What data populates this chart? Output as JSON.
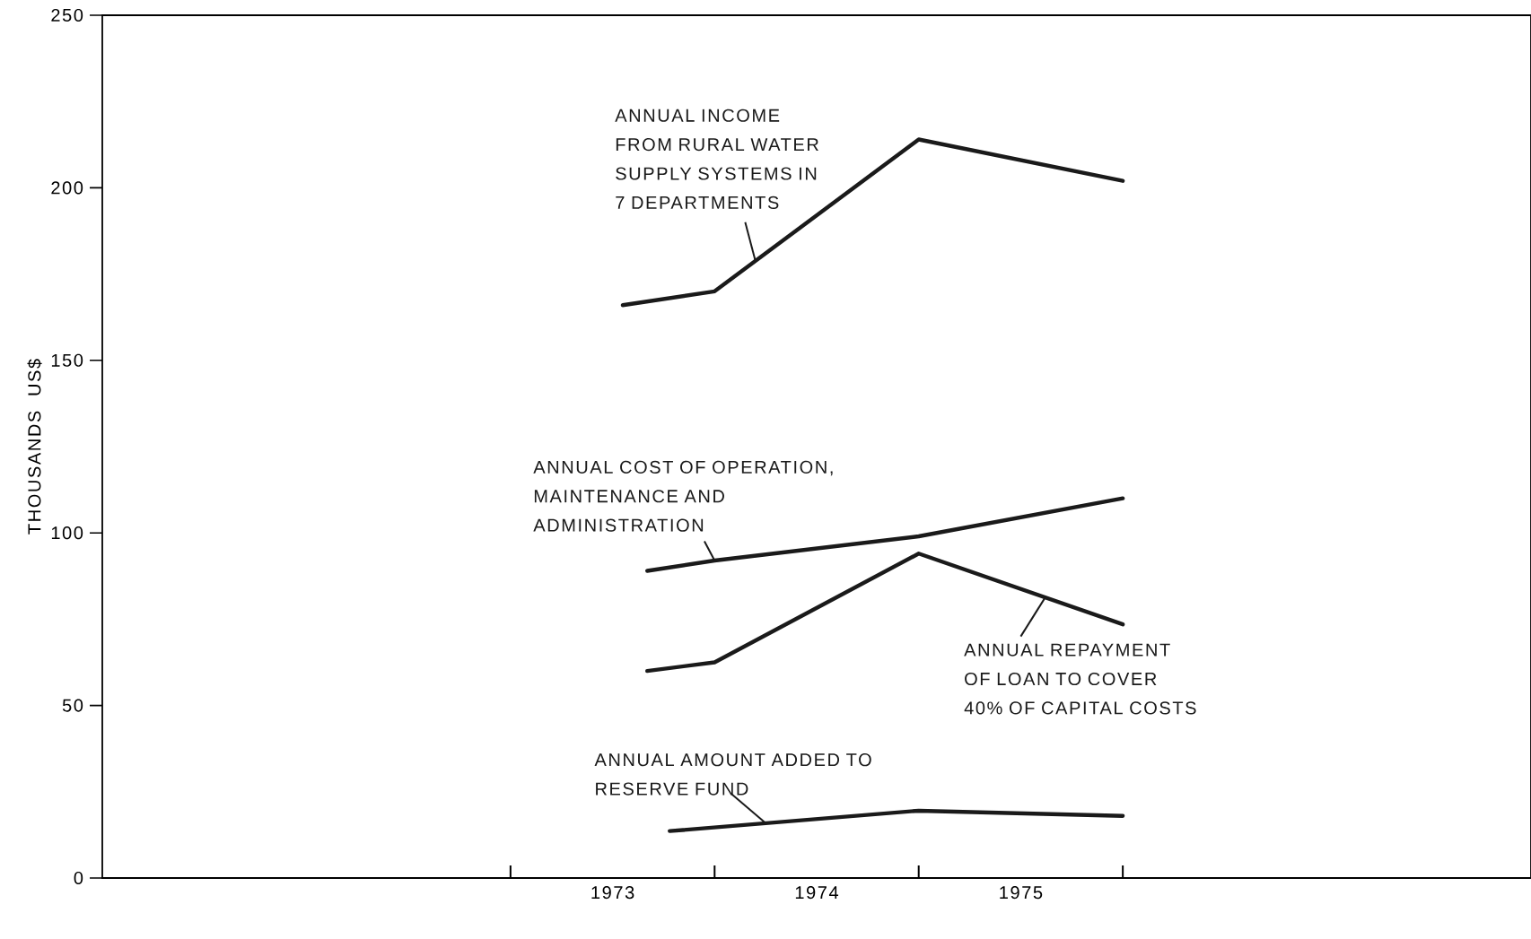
{
  "chart_data": {
    "type": "line",
    "ylabel": "THOUSANDS US$",
    "xlim": [
      1971,
      1978
    ],
    "ylim": [
      0,
      250
    ],
    "xticks": [
      {
        "value": 1973,
        "label": null
      },
      {
        "value": 1974,
        "label": null
      },
      {
        "value": 1975,
        "label": null
      },
      {
        "value": 1976,
        "label": null
      },
      {
        "value": 1973.5,
        "label": "1973"
      },
      {
        "value": 1974.5,
        "label": "1974"
      },
      {
        "value": 1975.5,
        "label": "1975"
      }
    ],
    "yticks": [
      0,
      50,
      100,
      150,
      200,
      250
    ],
    "grid": false,
    "marker": "none",
    "line_style": "solid",
    "series": [
      {
        "name": "ANNUAL INCOME FROM RURAL WATER SUPPLY SYSTEMS IN 7 DEPARTMENTS",
        "color": "#1a1a1a",
        "x": [
          1973.55,
          1974.0,
          1975.0,
          1976.0
        ],
        "values": [
          166,
          170,
          214,
          202
        ]
      },
      {
        "name": "ANNUAL COST OF OPERATION, MAINTENANCE AND ADMINISTRATION",
        "color": "#1a1a1a",
        "x": [
          1973.67,
          1974.0,
          1975.0,
          1976.0
        ],
        "values": [
          89,
          92,
          99,
          110
        ]
      },
      {
        "name": "ANNUAL REPAYMENT OF LOAN TO COVER 40% OF CAPITAL COSTS",
        "color": "#1a1a1a",
        "x": [
          1973.67,
          1974.0,
          1975.0,
          1976.0
        ],
        "values": [
          60,
          62.5,
          94,
          73.5
        ]
      },
      {
        "name": "ANNUAL AMOUNT ADDED TO RESERVE FUND",
        "color": "#1a1a1a",
        "x": [
          1973.78,
          1975.0,
          1976.0
        ],
        "values": [
          13.6,
          19.5,
          18
        ]
      }
    ]
  }
}
